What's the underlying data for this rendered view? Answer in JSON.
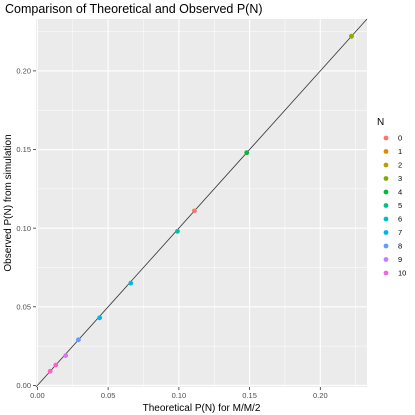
{
  "chart_data": {
    "type": "scatter",
    "title": "Comparison of Theoretical and Observed P(N)",
    "xlabel": "Theoretical P(N) for M/M/2",
    "ylabel": "Observed P(N) from simulation",
    "xlim": [
      -0.001,
      0.233
    ],
    "ylim": [
      -0.001,
      0.233
    ],
    "xticks": [
      0.0,
      0.05,
      0.1,
      0.15,
      0.2
    ],
    "yticks": [
      0.0,
      0.05,
      0.1,
      0.15,
      0.2
    ],
    "xtick_labels": [
      "0.00",
      "0.05",
      "0.10",
      "0.15",
      "0.20"
    ],
    "ytick_labels": [
      "0.00",
      "0.05",
      "0.10",
      "0.15",
      "0.20"
    ],
    "grid": true,
    "reference_line": "y = x",
    "legend": {
      "title": "N",
      "placement": "right",
      "entries": [
        "0",
        "1",
        "2",
        "3",
        "4",
        "5",
        "6",
        "7",
        "8",
        "9",
        "10"
      ]
    },
    "points": [
      {
        "N": "0",
        "x": 0.111,
        "y": 0.111,
        "color": "#F8766D"
      },
      {
        "N": "1",
        "x": 0.222,
        "y": 0.222,
        "color": "#D39200"
      },
      {
        "N": "2",
        "x": 0.222,
        "y": 0.222,
        "color": "#93AA00"
      },
      {
        "N": "3",
        "x": 0.148,
        "y": 0.148,
        "color": "#00BA38"
      },
      {
        "N": "4",
        "x": 0.099,
        "y": 0.098,
        "color": "#00C19F"
      },
      {
        "N": "5",
        "x": 0.066,
        "y": 0.065,
        "color": "#00B9E3"
      },
      {
        "N": "6",
        "x": 0.044,
        "y": 0.043,
        "color": "#00B9E3"
      },
      {
        "N": "7",
        "x": 0.029,
        "y": 0.029,
        "color": "#619CFF"
      },
      {
        "N": "8",
        "x": 0.02,
        "y": 0.019,
        "color": "#DB72FB"
      },
      {
        "N": "9",
        "x": 0.013,
        "y": 0.013,
        "color": "#FF61C3"
      },
      {
        "N": "10",
        "x": 0.009,
        "y": 0.009,
        "color": "#FF61C3"
      }
    ],
    "legend_colors": [
      "#F8766D",
      "#DE8C00",
      "#B79F00",
      "#7CAE00",
      "#00BA38",
      "#00C08B",
      "#00BFC4",
      "#00B4F0",
      "#619CFF",
      "#C77CFF",
      "#F564E3"
    ]
  }
}
